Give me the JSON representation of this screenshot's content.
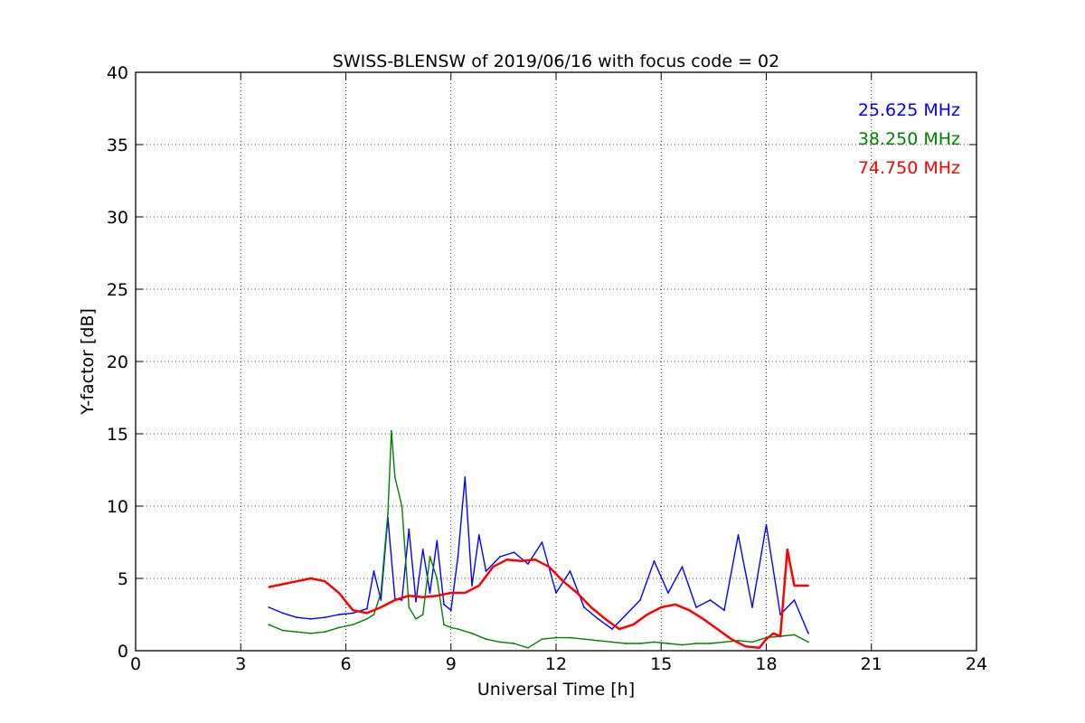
{
  "chart_data": {
    "type": "line",
    "title": "SWISS-BLENSW of 2019/06/16 with focus code = 02",
    "xlabel": "Universal Time [h]",
    "ylabel": "Y-factor [dB]",
    "xlim": [
      0,
      24
    ],
    "ylim": [
      0,
      40
    ],
    "xticks": [
      "0",
      "3",
      "6",
      "9",
      "12",
      "15",
      "18",
      "21",
      "24"
    ],
    "yticks": [
      "0",
      "5",
      "10",
      "15",
      "20",
      "25",
      "30",
      "35",
      "40"
    ],
    "grid": true,
    "legend_position": "top-right",
    "series": [
      {
        "name": "25.625 MHz",
        "color": "#0000ff",
        "x": [
          3.8,
          4.2,
          4.6,
          5.0,
          5.4,
          5.8,
          6.2,
          6.6,
          6.8,
          7.0,
          7.2,
          7.4,
          7.6,
          7.8,
          8.0,
          8.2,
          8.4,
          8.6,
          8.8,
          9.0,
          9.2,
          9.4,
          9.6,
          9.8,
          10.0,
          10.4,
          10.8,
          11.2,
          11.6,
          12.0,
          12.4,
          12.8,
          13.2,
          13.6,
          14.0,
          14.4,
          14.8,
          15.2,
          15.6,
          16.0,
          16.4,
          16.8,
          17.2,
          17.6,
          18.0,
          18.4,
          18.8,
          19.2
        ],
        "y": [
          3.0,
          2.6,
          2.3,
          2.2,
          2.3,
          2.5,
          2.6,
          2.9,
          5.5,
          3.5,
          9.2,
          3.6,
          3.5,
          8.4,
          3.4,
          7.0,
          4.0,
          7.6,
          3.2,
          2.8,
          6.5,
          12.0,
          4.5,
          8.0,
          5.5,
          6.5,
          6.8,
          6.0,
          7.5,
          4.0,
          5.5,
          3.0,
          2.2,
          1.5,
          2.5,
          3.5,
          6.2,
          4.0,
          5.8,
          3.0,
          3.5,
          2.8,
          8.0,
          3.0,
          8.7,
          2.5,
          3.5,
          1.2
        ]
      },
      {
        "name": "38.250 MHz",
        "color": "#008000",
        "x": [
          3.8,
          4.2,
          4.6,
          5.0,
          5.4,
          5.8,
          6.2,
          6.6,
          6.8,
          7.0,
          7.2,
          7.3,
          7.4,
          7.6,
          7.8,
          8.0,
          8.2,
          8.4,
          8.6,
          8.8,
          9.0,
          9.2,
          9.6,
          10.0,
          10.4,
          10.8,
          11.2,
          11.6,
          12.0,
          12.4,
          12.8,
          13.2,
          13.6,
          14.0,
          14.4,
          14.8,
          15.2,
          15.6,
          16.0,
          16.4,
          16.8,
          17.2,
          17.6,
          18.0,
          18.4,
          18.8,
          19.2
        ],
        "y": [
          1.8,
          1.4,
          1.3,
          1.2,
          1.3,
          1.6,
          1.8,
          2.2,
          2.5,
          4.0,
          9.5,
          15.2,
          12.0,
          10.0,
          3.0,
          2.2,
          2.5,
          6.5,
          5.0,
          1.8,
          1.6,
          1.5,
          1.2,
          0.8,
          0.6,
          0.5,
          0.2,
          0.8,
          0.9,
          0.9,
          0.8,
          0.7,
          0.6,
          0.5,
          0.5,
          0.6,
          0.5,
          0.4,
          0.5,
          0.5,
          0.6,
          0.7,
          0.6,
          0.9,
          1.0,
          1.1,
          0.6
        ]
      },
      {
        "name": "74.750 MHz",
        "color": "#ff0000",
        "x": [
          3.8,
          4.2,
          4.6,
          5.0,
          5.4,
          5.8,
          6.2,
          6.6,
          7.0,
          7.4,
          7.8,
          8.2,
          8.6,
          9.0,
          9.4,
          9.8,
          10.2,
          10.6,
          11.0,
          11.4,
          11.8,
          12.2,
          12.6,
          13.0,
          13.4,
          13.8,
          14.2,
          14.6,
          15.0,
          15.4,
          15.8,
          16.2,
          16.6,
          17.0,
          17.4,
          17.8,
          18.0,
          18.2,
          18.4,
          18.6,
          18.8,
          19.2
        ],
        "y": [
          4.4,
          4.6,
          4.8,
          5.0,
          4.8,
          4.0,
          2.8,
          2.6,
          3.0,
          3.5,
          3.8,
          3.7,
          3.8,
          4.0,
          4.0,
          4.5,
          5.8,
          6.3,
          6.2,
          6.3,
          5.8,
          4.8,
          4.0,
          3.0,
          2.2,
          1.5,
          1.8,
          2.5,
          3.0,
          3.2,
          2.8,
          2.2,
          1.5,
          0.8,
          0.3,
          0.2,
          0.8,
          1.2,
          1.0,
          7.0,
          4.5,
          4.5
        ]
      }
    ]
  }
}
